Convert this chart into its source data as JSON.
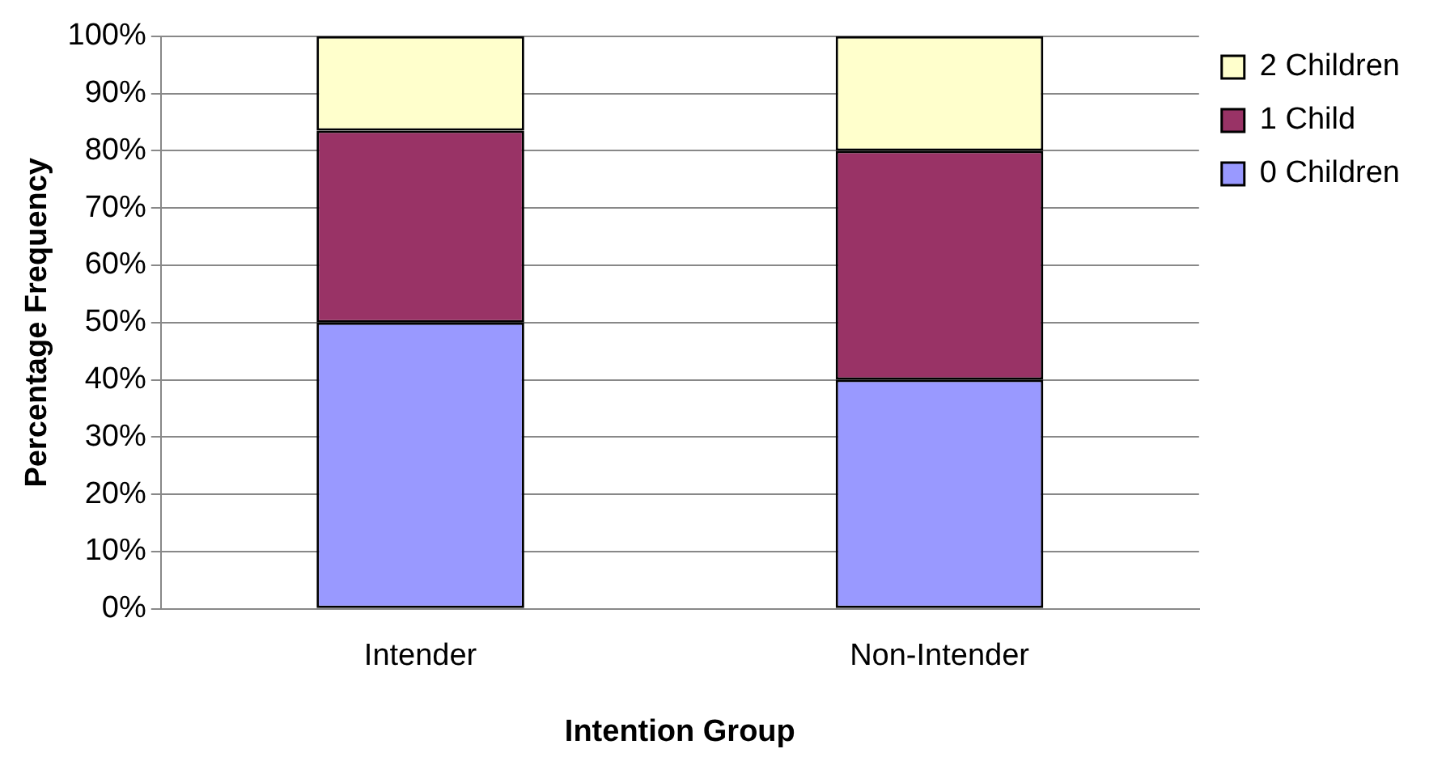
{
  "chart_data": {
    "type": "bar",
    "stacked": true,
    "xlabel": "Intention Group",
    "ylabel": "Percentage Frequency",
    "categories": [
      "Intender",
      "Non-Intender"
    ],
    "series": [
      {
        "name": "0 Children",
        "color": "#9999ff",
        "values": [
          50,
          40
        ]
      },
      {
        "name": "1 Child",
        "color": "#993366",
        "values": [
          33.5,
          40
        ]
      },
      {
        "name": "2 Children",
        "color": "#ffffcc",
        "values": [
          16.5,
          20
        ]
      }
    ],
    "ylim": [
      0,
      100
    ],
    "yticks": [
      {
        "value": 0,
        "label": "0%"
      },
      {
        "value": 10,
        "label": "10%"
      },
      {
        "value": 20,
        "label": "20%"
      },
      {
        "value": 30,
        "label": "30%"
      },
      {
        "value": 40,
        "label": "40%"
      },
      {
        "value": 50,
        "label": "50%"
      },
      {
        "value": 60,
        "label": "60%"
      },
      {
        "value": 70,
        "label": "70%"
      },
      {
        "value": 80,
        "label": "80%"
      },
      {
        "value": 90,
        "label": "90%"
      },
      {
        "value": 100,
        "label": "100%"
      }
    ],
    "grid": "y",
    "legend": "right"
  }
}
